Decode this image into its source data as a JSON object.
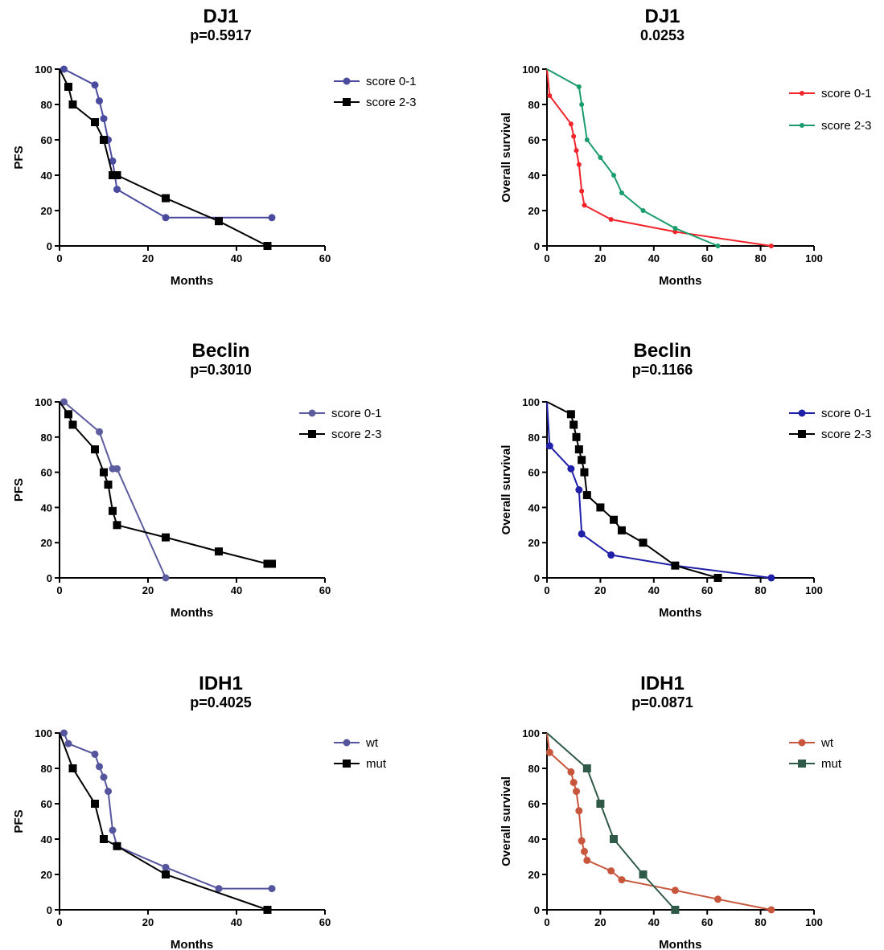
{
  "chart_data": [
    {
      "type": "line",
      "title": "DJ1",
      "subtitle": "p=0.5917",
      "xlabel": "Months",
      "ylabel": "PFS",
      "xlim": [
        0,
        60
      ],
      "ylim": [
        0,
        100
      ],
      "xticks": [
        0,
        20,
        40,
        60
      ],
      "yticks": [
        0,
        20,
        40,
        60,
        80,
        100
      ],
      "legend_position": "top-right",
      "series": [
        {
          "name": "score 0-1",
          "color": "#4a4a9e",
          "marker": "circle",
          "x": [
            0,
            1,
            8,
            9,
            10,
            11,
            12,
            13,
            24,
            48
          ],
          "y": [
            100,
            100,
            91,
            82,
            72,
            60,
            48,
            32,
            16,
            16
          ]
        },
        {
          "name": "score 2-3",
          "color": "#000000",
          "marker": "square",
          "x": [
            0,
            2,
            3,
            8,
            10,
            12,
            13,
            24,
            36,
            47
          ],
          "y": [
            100,
            90,
            80,
            70,
            60,
            40,
            40,
            27,
            14,
            0
          ]
        }
      ]
    },
    {
      "type": "line",
      "title": "DJ1",
      "subtitle": "0.0253",
      "xlabel": "Months",
      "ylabel": "Overall survival",
      "xlim": [
        0,
        100
      ],
      "ylim": [
        0,
        100
      ],
      "xticks": [
        0,
        20,
        40,
        60,
        80,
        100
      ],
      "yticks": [
        0,
        20,
        40,
        60,
        80,
        100
      ],
      "legend_position": "top-right",
      "series": [
        {
          "name": "score 0-1",
          "color": "#f0242a",
          "marker": "dot",
          "x": [
            0,
            1,
            9,
            10,
            11,
            12,
            13,
            14,
            24,
            48,
            84
          ],
          "y": [
            100,
            85,
            69,
            62,
            54,
            46,
            31,
            23,
            15,
            8,
            0
          ]
        },
        {
          "name": "score 2-3",
          "color": "#1b9c6c",
          "marker": "dot",
          "x": [
            0,
            12,
            13,
            15,
            20,
            25,
            28,
            36,
            48,
            64
          ],
          "y": [
            100,
            90,
            80,
            60,
            50,
            40,
            30,
            20,
            10,
            0
          ]
        }
      ]
    },
    {
      "type": "line",
      "title": "Beclin",
      "subtitle": "p=0.3010",
      "xlabel": "Months",
      "ylabel": "PFS",
      "xlim": [
        0,
        60
      ],
      "ylim": [
        0,
        100
      ],
      "xticks": [
        0,
        20,
        40,
        60
      ],
      "yticks": [
        0,
        20,
        40,
        60,
        80,
        100
      ],
      "legend_position": "top-right",
      "series": [
        {
          "name": "score 0-1",
          "color": "#5c5c9e",
          "marker": "circle",
          "x": [
            0,
            1,
            9,
            12,
            13,
            24
          ],
          "y": [
            100,
            100,
            83,
            62,
            62,
            0
          ]
        },
        {
          "name": "score 2-3",
          "color": "#000000",
          "marker": "square",
          "x": [
            0,
            2,
            3,
            8,
            10,
            11,
            12,
            13,
            24,
            36,
            47,
            48
          ],
          "y": [
            100,
            93,
            87,
            73,
            60,
            53,
            38,
            30,
            23,
            15,
            8,
            8
          ]
        }
      ]
    },
    {
      "type": "line",
      "title": "Beclin",
      "subtitle": "p=0.1166",
      "xlabel": "Months",
      "ylabel": "Overall survival",
      "xlim": [
        0,
        100
      ],
      "ylim": [
        0,
        100
      ],
      "xticks": [
        0,
        20,
        40,
        60,
        80,
        100
      ],
      "yticks": [
        0,
        20,
        40,
        60,
        80,
        100
      ],
      "legend_position": "top-right",
      "series": [
        {
          "name": "score 0-1",
          "color": "#2020a8",
          "marker": "circle",
          "x": [
            0,
            1,
            9,
            12,
            13,
            24,
            48,
            84
          ],
          "y": [
            100,
            75,
            62,
            50,
            25,
            13,
            7,
            0
          ]
        },
        {
          "name": "score 2-3",
          "color": "#000000",
          "marker": "square",
          "x": [
            0,
            9,
            10,
            11,
            12,
            13,
            14,
            15,
            20,
            25,
            28,
            36,
            48,
            64
          ],
          "y": [
            100,
            93,
            87,
            80,
            73,
            67,
            60,
            47,
            40,
            33,
            27,
            20,
            7,
            0
          ]
        }
      ]
    },
    {
      "type": "line",
      "title": "IDH1",
      "subtitle": "p=0.4025",
      "xlabel": "Months",
      "ylabel": "PFS",
      "xlim": [
        0,
        60
      ],
      "ylim": [
        0,
        100
      ],
      "xticks": [
        0,
        20,
        40,
        60
      ],
      "yticks": [
        0,
        20,
        40,
        60,
        80,
        100
      ],
      "legend_position": "top-right",
      "series": [
        {
          "name": "wt",
          "color": "#55559e",
          "marker": "circle",
          "x": [
            0,
            1,
            2,
            8,
            9,
            10,
            11,
            12,
            13,
            24,
            36,
            48
          ],
          "y": [
            100,
            100,
            94,
            88,
            81,
            75,
            67,
            45,
            36,
            24,
            12,
            12
          ]
        },
        {
          "name": "mut",
          "color": "#000000",
          "marker": "square",
          "x": [
            0,
            3,
            8,
            10,
            13,
            24,
            47
          ],
          "y": [
            100,
            80,
            60,
            40,
            36,
            20,
            0
          ]
        }
      ]
    },
    {
      "type": "line",
      "title": "IDH1",
      "subtitle": "p=0.0871",
      "xlabel": "Months",
      "ylabel": "Overall survival",
      "xlim": [
        0,
        100
      ],
      "ylim": [
        0,
        100
      ],
      "xticks": [
        0,
        20,
        40,
        60,
        80,
        100
      ],
      "yticks": [
        0,
        20,
        40,
        60,
        80,
        100
      ],
      "legend_position": "top-right",
      "series": [
        {
          "name": "wt",
          "color": "#c8563c",
          "marker": "circle",
          "x": [
            0,
            1,
            9,
            10,
            11,
            12,
            13,
            14,
            15,
            24,
            28,
            48,
            64,
            84
          ],
          "y": [
            100,
            89,
            78,
            72,
            67,
            56,
            39,
            33,
            28,
            22,
            17,
            11,
            6,
            0
          ]
        },
        {
          "name": "mut",
          "color": "#2f5a48",
          "marker": "square",
          "x": [
            0,
            15,
            20,
            25,
            36,
            48
          ],
          "y": [
            100,
            80,
            60,
            40,
            20,
            0
          ]
        }
      ]
    }
  ]
}
